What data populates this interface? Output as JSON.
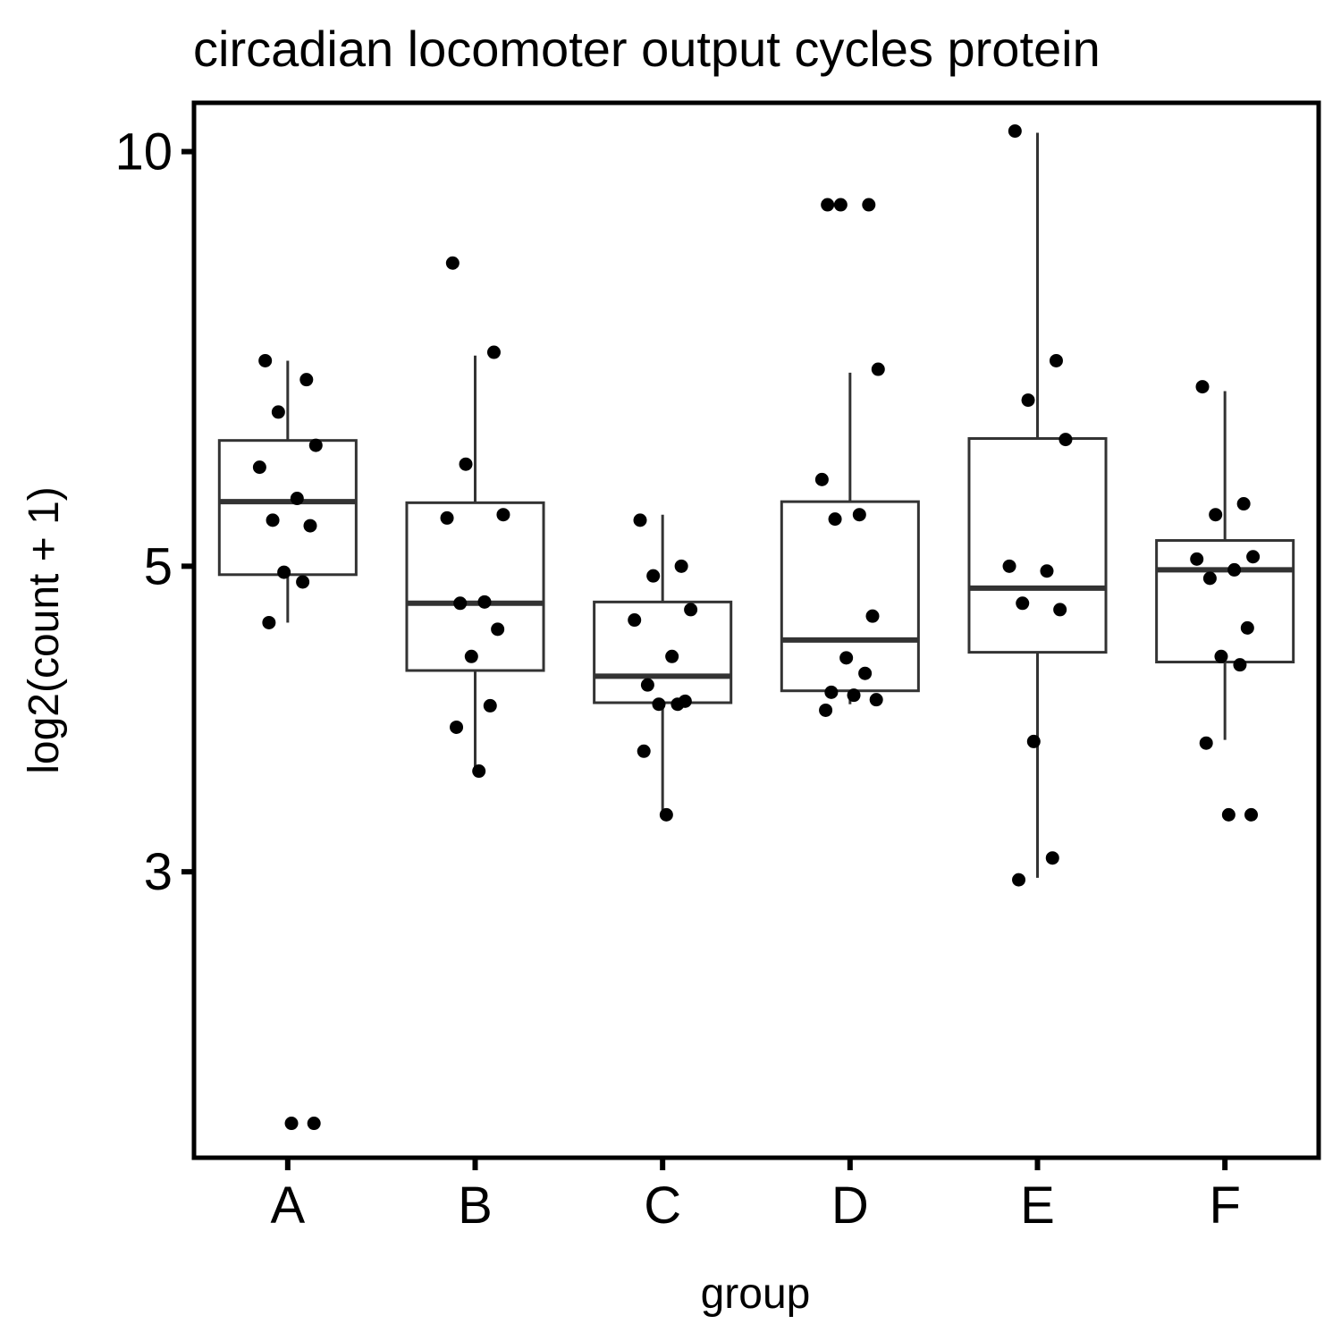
{
  "chart_data": {
    "type": "box",
    "title": "circadian locomoter output cycles protein",
    "xlabel": "group",
    "ylabel": "log2(count + 1)",
    "y_scale": "log",
    "ylim": [
      1.86,
      10.85
    ],
    "y_ticks": [
      3,
      5,
      10
    ],
    "categories": [
      "A",
      "B",
      "C",
      "D",
      "E",
      "F"
    ],
    "boxes": [
      {
        "group": "A",
        "whisker_low": 4.55,
        "q1": 4.93,
        "median": 5.57,
        "q3": 6.17,
        "whisker_high": 7.05
      },
      {
        "group": "B",
        "whisker_low": 3.57,
        "q1": 4.2,
        "median": 4.7,
        "q3": 5.56,
        "whisker_high": 7.11
      },
      {
        "group": "C",
        "whisker_low": 3.3,
        "q1": 3.98,
        "median": 4.16,
        "q3": 4.71,
        "whisker_high": 5.45
      },
      {
        "group": "D",
        "whisker_low": 3.97,
        "q1": 4.06,
        "median": 4.42,
        "q3": 5.57,
        "whisker_high": 6.91
      },
      {
        "group": "E",
        "whisker_low": 2.97,
        "q1": 4.33,
        "median": 4.82,
        "q3": 6.19,
        "whisker_high": 10.32
      },
      {
        "group": "F",
        "whisker_low": 3.74,
        "q1": 4.26,
        "median": 4.97,
        "q3": 5.22,
        "whisker_high": 6.7
      }
    ],
    "points": [
      {
        "group": "A",
        "values": [
          7.05,
          6.83,
          6.47,
          6.12,
          5.9,
          5.6,
          5.4,
          5.35,
          4.95,
          4.87,
          4.55,
          1.97,
          1.97
        ]
      },
      {
        "group": "B",
        "values": [
          8.3,
          7.15,
          5.93,
          5.45,
          5.42,
          4.71,
          4.7,
          4.5,
          4.3,
          3.96,
          3.82,
          3.55
        ]
      },
      {
        "group": "C",
        "values": [
          5.4,
          5.0,
          4.92,
          4.65,
          4.57,
          4.3,
          4.1,
          3.99,
          3.97,
          3.97,
          3.67,
          3.3
        ]
      },
      {
        "group": "D",
        "values": [
          9.15,
          9.15,
          9.15,
          6.95,
          5.78,
          5.45,
          5.41,
          4.6,
          4.29,
          4.18,
          4.05,
          4.03,
          4.0,
          3.93
        ]
      },
      {
        "group": "E",
        "values": [
          10.35,
          7.05,
          6.6,
          6.18,
          5.0,
          4.96,
          4.7,
          4.65,
          3.73,
          3.07,
          2.96
        ]
      },
      {
        "group": "F",
        "values": [
          6.75,
          5.55,
          5.45,
          5.08,
          5.06,
          4.97,
          4.9,
          4.51,
          4.3,
          4.24,
          3.72,
          3.3,
          3.3
        ]
      }
    ]
  }
}
